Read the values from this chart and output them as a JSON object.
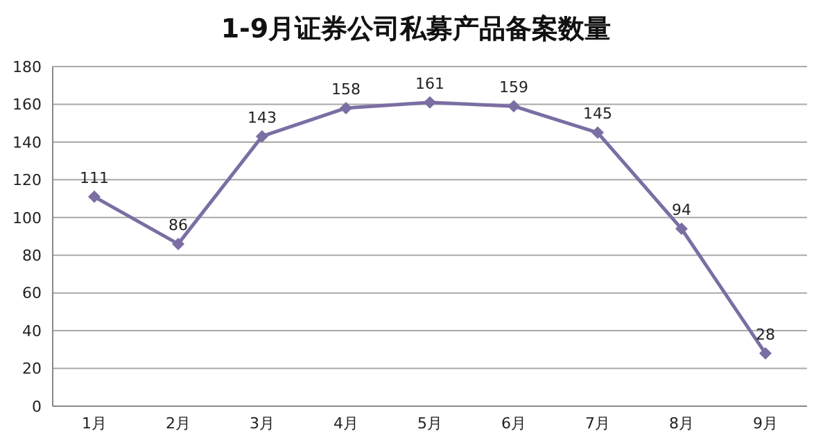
{
  "chart_data": {
    "type": "line",
    "title": "1-9月证券公司私募产品备案数量",
    "categories": [
      "1月",
      "2月",
      "3月",
      "4月",
      "5月",
      "6月",
      "7月",
      "8月",
      "9月"
    ],
    "values": [
      111,
      86,
      143,
      158,
      161,
      159,
      145,
      94,
      28
    ],
    "color": "#7b6ea3",
    "ylim": [
      0,
      180
    ],
    "yticks": [
      0,
      20,
      40,
      60,
      80,
      100,
      120,
      140,
      160,
      180
    ],
    "grid": "y",
    "marker": "diamond",
    "line_style": "solid",
    "data_labels": true
  }
}
